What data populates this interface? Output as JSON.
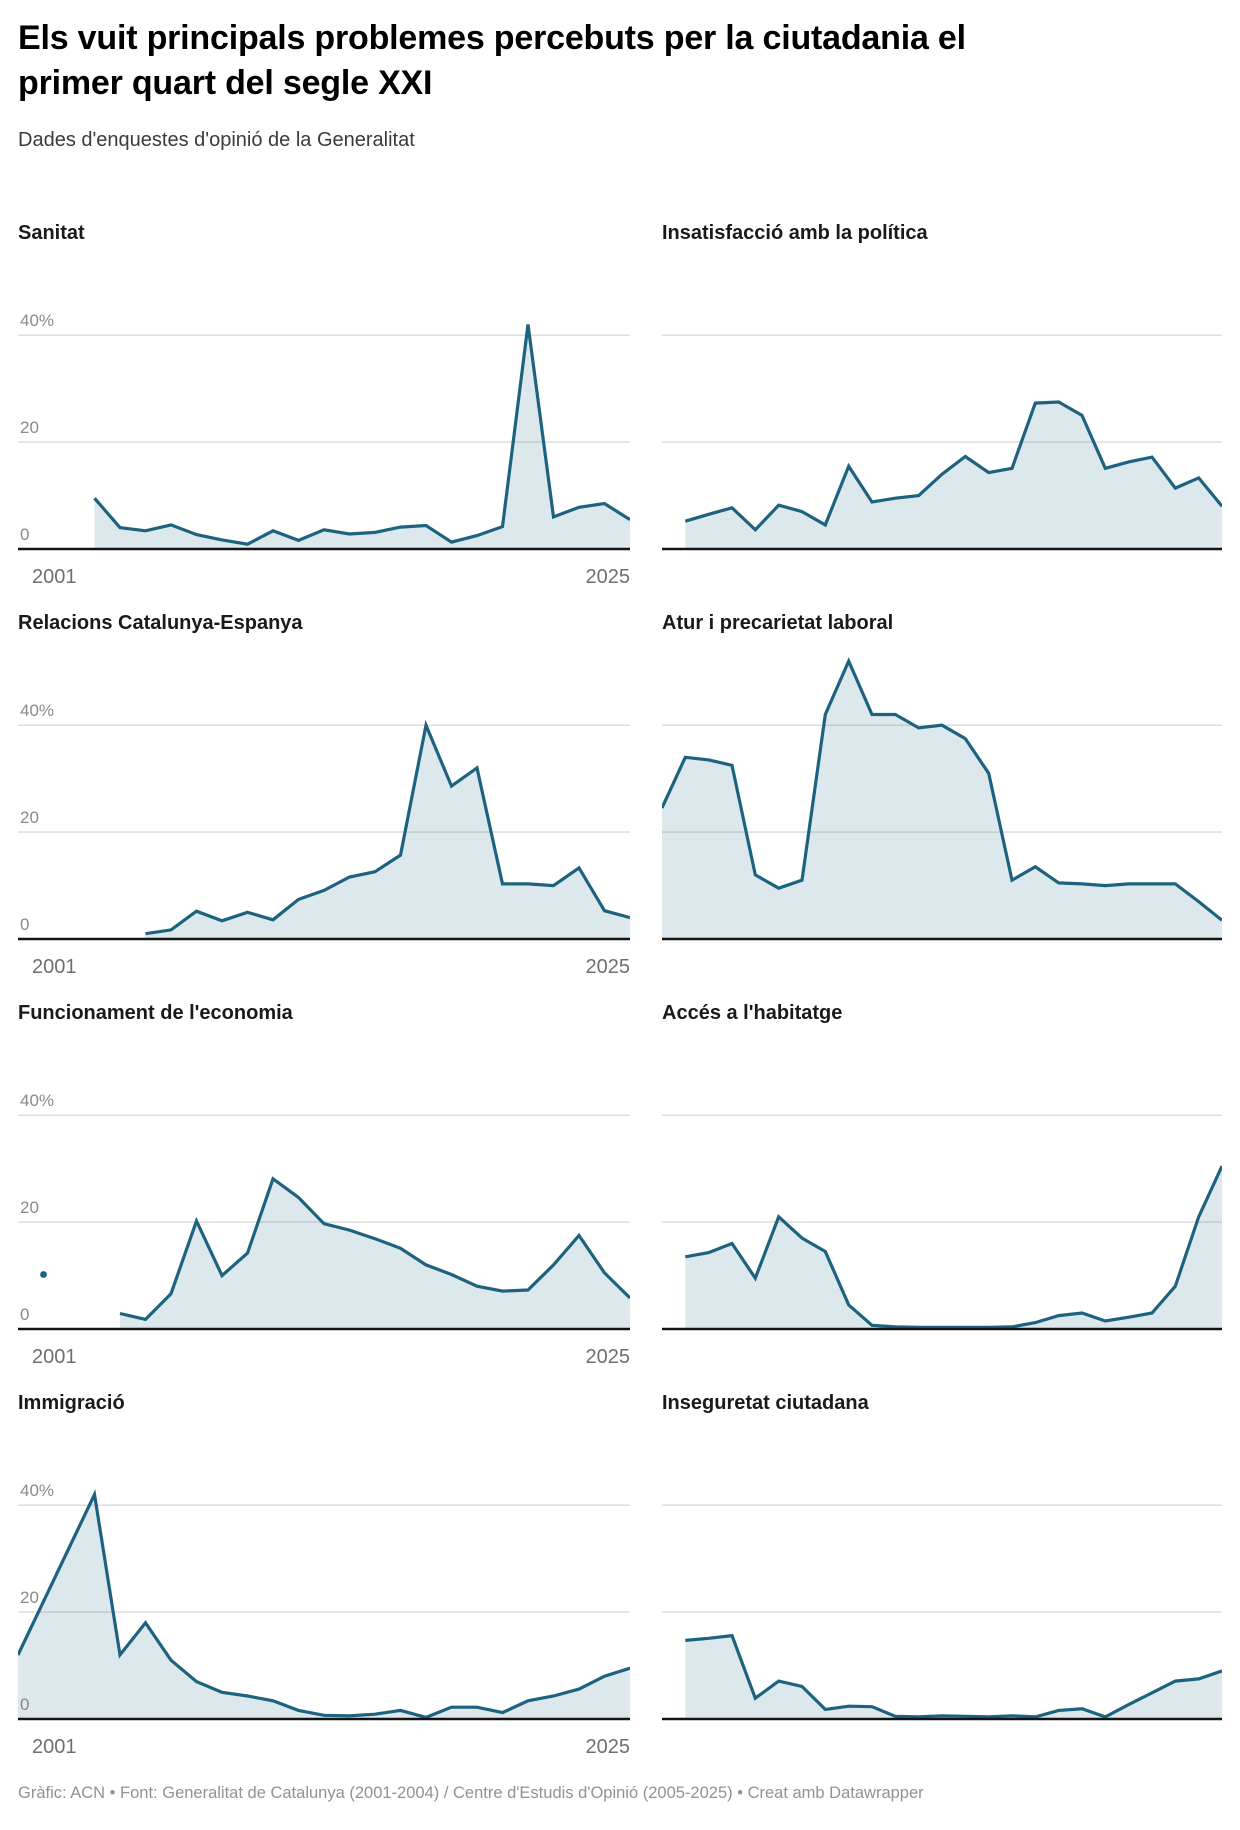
{
  "header": {
    "title": "Els vuit principals problemes percebuts per la ciutadania el primer quart del segle XXI",
    "subtitle": "Dades d'enquestes d'opinió de la Generalitat"
  },
  "footer": {
    "credit": "Gràfic: ACN • Font: Generalitat de Catalunya (2001-2004) / Centre d'Estudis d'Opinió (2005-2025) • Creat amb Datawrapper"
  },
  "colors": {
    "line": "#1d637f",
    "area_fill": "rgba(29,99,127,0.15)",
    "gridline": "#dadada",
    "baseline": "#141414",
    "y_label": "#8a8a8a",
    "x_label": "#6f6f6f"
  },
  "chart_data": {
    "type": "area",
    "unit": "%",
    "axis": {
      "x_min": 2001,
      "x_max": 2025,
      "x_first_label": "2001",
      "x_last_label": "2025",
      "y_labels": [
        "40%",
        "20",
        "0"
      ],
      "gridline_values": [
        40,
        20
      ],
      "y_max_headroom": 55,
      "grid_on": true,
      "x_labels_left_column_only": true,
      "y_labels_left_column_only": true
    },
    "panels": [
      {
        "title": "Sanitat",
        "start_year": 2004,
        "values": [
          9.5,
          4,
          3.4,
          4.5,
          2.7,
          1.7,
          0.9,
          3.4,
          1.6,
          3.6,
          2.8,
          3.1,
          4.1,
          4.4,
          1.3,
          2.5,
          4.2,
          42,
          6,
          7.8,
          8.5,
          5.5
        ]
      },
      {
        "title": "Insatisfacció amb la política",
        "start_year": 2002,
        "values": [
          5.2,
          6.5,
          7.7,
          3.6,
          8.2,
          7,
          4.5,
          15.5,
          8.8,
          9.5,
          10,
          14,
          17.3,
          14.3,
          15.1,
          27.3,
          27.5,
          25,
          15.1,
          16.3,
          17.2,
          11.4,
          13.3,
          8
        ]
      },
      {
        "title": "Relacions Catalunya-Espanya",
        "start_year": 2006,
        "values": [
          1,
          1.7,
          5.2,
          3.4,
          5,
          3.6,
          7.4,
          9.1,
          11.6,
          12.6,
          15.7,
          40,
          28.6,
          32,
          10.3,
          10.3,
          10,
          13.3,
          5.3,
          4
        ]
      },
      {
        "title": "Atur i precarietat laboral",
        "start_year": 2001,
        "values": [
          24.5,
          34,
          33.5,
          32.5,
          12,
          9.5,
          11,
          42,
          52,
          42,
          42,
          39.5,
          40,
          37.5,
          31,
          11,
          13.5,
          10.5,
          10.3,
          10,
          10.3,
          10.3,
          10.3,
          7,
          3.5
        ]
      },
      {
        "title": "Funcionament de l'economia",
        "start_year": 2005,
        "values": [
          2.9,
          1.8,
          6.6,
          20.2,
          10,
          14.2,
          28.1,
          24.6,
          19.7,
          18.5,
          16.9,
          15.1,
          12,
          10.2,
          8,
          7.1,
          7.3,
          12,
          17.5,
          10.5,
          5.8
        ],
        "isolated_point": {
          "year": 2002,
          "value": 10.2
        }
      },
      {
        "title": "Accés a l'habitatge",
        "start_year": 2002,
        "values": [
          13.5,
          14.3,
          16,
          9.5,
          21,
          17,
          14.5,
          4.5,
          0.7,
          0.4,
          0.3,
          0.3,
          0.3,
          0.3,
          0.4,
          1.2,
          2.5,
          3,
          1.5,
          2.2,
          3,
          8,
          21,
          30.5
        ]
      },
      {
        "title": "Immigració",
        "start_year": 2001,
        "values": [
          12,
          22,
          32,
          42,
          12,
          18,
          11,
          7,
          5,
          4.3,
          3.4,
          1.6,
          0.7,
          0.6,
          0.9,
          1.6,
          0.3,
          2.2,
          2.2,
          1.2,
          3.4,
          4.3,
          5.6,
          8,
          9.5
        ]
      },
      {
        "title": "Inseguretat ciutadana",
        "start_year": 2002,
        "values": [
          14.7,
          15.1,
          15.6,
          3.9,
          7.1,
          6.1,
          1.8,
          2.4,
          2.3,
          0.5,
          0.4,
          0.6,
          0.5,
          0.4,
          0.6,
          0.4,
          1.6,
          1.9,
          0.4,
          2.7,
          4.9,
          7.1,
          7.5,
          9
        ]
      }
    ]
  }
}
